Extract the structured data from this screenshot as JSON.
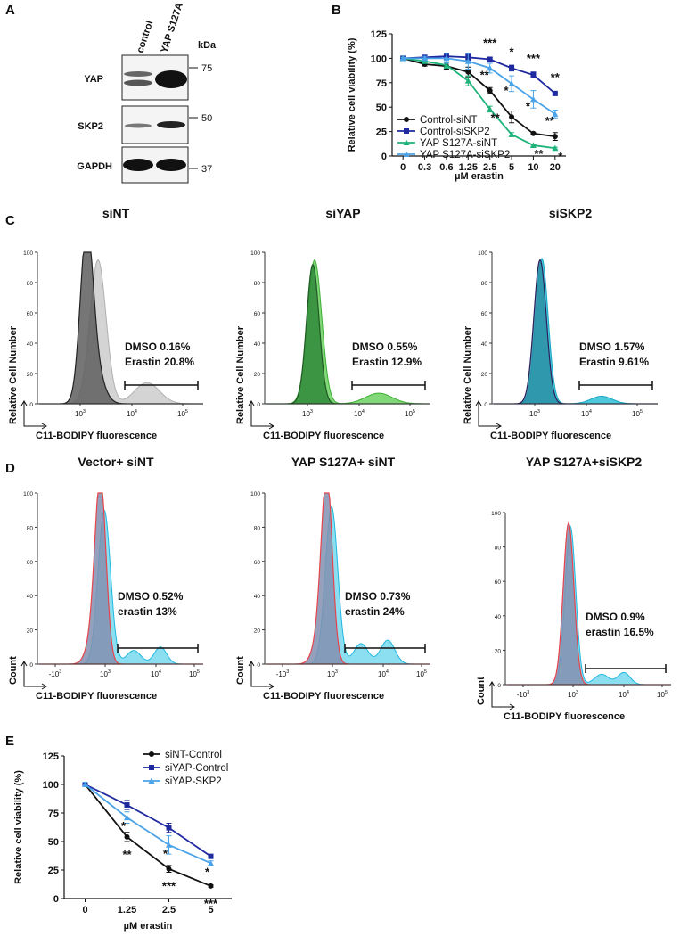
{
  "figure": {
    "panel_labels": [
      "A",
      "B",
      "C",
      "D",
      "E"
    ],
    "blot": {
      "lanes": [
        "control",
        "YAP S127A"
      ],
      "unit": "kDa",
      "rows": [
        {
          "label": "YAP",
          "marker": "75"
        },
        {
          "label": "SKP2",
          "marker": "50"
        },
        {
          "label": "GAPDH",
          "marker": "37"
        }
      ]
    },
    "flow_c": {
      "y_label": "Relative Cell Number",
      "x_label": "C11-BODIPY fluorescence",
      "ylim": [
        0,
        100
      ],
      "yticks": [
        0,
        20,
        40,
        60,
        80,
        100
      ],
      "xticks": [
        {
          "base": "10",
          "exp": "3"
        },
        {
          "base": "10",
          "exp": "4"
        },
        {
          "base": "10",
          "exp": "5"
        }
      ],
      "panels": [
        {
          "title": "siNT",
          "dmso": "DMSO 0.16%",
          "erastin": "Erastin 20.8%",
          "dmso_color": "#111111",
          "erastin_color": "#9a9a9a"
        },
        {
          "title": "siYAP",
          "dmso": "DMSO 0.55%",
          "erastin": "Erastin 12.9%",
          "dmso_color": "#2f5a1a",
          "erastin_color": "#63b735"
        },
        {
          "title": "siSKP2",
          "dmso": "DMSO 1.57%",
          "erastin": "Erastin 9.61%",
          "dmso_color": "#1b4b7c",
          "erastin_color": "#16b3d6"
        }
      ]
    },
    "flow_d": {
      "y_label": "Count",
      "x_label": "C11-BODIPY fluorescence",
      "ylim": [
        0,
        100
      ],
      "yticks": [
        0,
        20,
        40,
        60,
        80,
        100
      ],
      "xticks": [
        {
          "base": "-10",
          "exp": "3"
        },
        {
          "base": "10",
          "exp": "3"
        },
        {
          "base": "10",
          "exp": "4"
        },
        {
          "base": "10",
          "exp": "5"
        }
      ],
      "panels": [
        {
          "title": "Vector+ siNT",
          "dmso": "DMSO 0.52%",
          "erastin": "erastin  13%",
          "dmso_color": "#e8434b",
          "erastin_color": "#1fb8e0"
        },
        {
          "title": "YAP S127A+ siNT",
          "dmso": "DMSO 0.73%",
          "erastin": "erastin 24%",
          "dmso_color": "#e8434b",
          "erastin_color": "#1fb8e0"
        },
        {
          "title": "YAP S127A+siSKP2",
          "dmso": "DMSO 0.9%",
          "erastin": "erastin 16.5%",
          "dmso_color": "#e8434b",
          "erastin_color": "#1fb8e0"
        }
      ]
    }
  },
  "chart_data": [
    {
      "type": "line",
      "y_label": "Relative cell viability (%)",
      "x_label": "µM erastin",
      "categories": [
        "0",
        "0.3",
        "0.6",
        "1.25",
        "2.5",
        "5",
        "10",
        "20"
      ],
      "ylim": [
        0,
        125
      ],
      "yticks": [
        0,
        25,
        50,
        75,
        100,
        125
      ],
      "legend": "lower left",
      "series": [
        {
          "name": "Control-siNT",
          "color": "#111111",
          "marker": "circle",
          "values": [
            100,
            94,
            92,
            86,
            67,
            40,
            23,
            20
          ],
          "errors": [
            2,
            2,
            3,
            5,
            3,
            6,
            1,
            4
          ]
        },
        {
          "name": "Control-siSKP2",
          "color": "#1f2aa0",
          "marker": "square",
          "values": [
            100,
            101,
            102,
            101,
            99,
            90,
            83,
            64
          ],
          "errors": [
            1,
            2,
            3,
            3,
            2,
            3,
            3,
            1
          ],
          "annotations": [
            null,
            null,
            null,
            null,
            "***",
            "*",
            "***",
            "**"
          ]
        },
        {
          "name": "YAP S127A-siNT",
          "color": "#1db37a",
          "marker": "triangle",
          "values": [
            100,
            97,
            93,
            77,
            48,
            22,
            11,
            8
          ],
          "errors": [
            1,
            2,
            3,
            5,
            3,
            2,
            1,
            1
          ],
          "annotations": [
            null,
            null,
            null,
            null,
            "**",
            null,
            "**",
            "*"
          ]
        },
        {
          "name": "YAP S127A-siSKP2",
          "color": "#4aa3e8",
          "marker": "triangle",
          "values": [
            100,
            100,
            100,
            97,
            90,
            74,
            58,
            43
          ],
          "errors": [
            1,
            2,
            5,
            8,
            5,
            8,
            9,
            4
          ],
          "annotations": [
            null,
            null,
            null,
            null,
            "**",
            "*",
            "*",
            "**"
          ]
        }
      ]
    },
    {
      "type": "line",
      "y_label": "Relative cell viability (%)",
      "x_label": "µM erastin",
      "categories": [
        "0",
        "1.25",
        "2.5",
        "5"
      ],
      "ylim": [
        0,
        125
      ],
      "yticks": [
        0,
        25,
        50,
        75,
        100,
        125
      ],
      "legend": "upper right",
      "series": [
        {
          "name": "siNT-Control",
          "color": "#111111",
          "marker": "circle",
          "values": [
            100,
            54,
            26,
            11
          ],
          "errors": [
            2,
            4,
            3,
            1
          ],
          "annotations": [
            null,
            "**",
            "***",
            "***"
          ]
        },
        {
          "name": "siYAP-Control",
          "color": "#1f2aa0",
          "marker": "square",
          "values": [
            100,
            82,
            62,
            37
          ],
          "errors": [
            2,
            4,
            4,
            1
          ]
        },
        {
          "name": "siYAP-SKP2",
          "color": "#4aa3e8",
          "marker": "triangle",
          "values": [
            100,
            71,
            47,
            31
          ],
          "errors": [
            2,
            5,
            8,
            2
          ],
          "annotations": [
            null,
            "*",
            "*",
            "*"
          ]
        }
      ]
    }
  ]
}
